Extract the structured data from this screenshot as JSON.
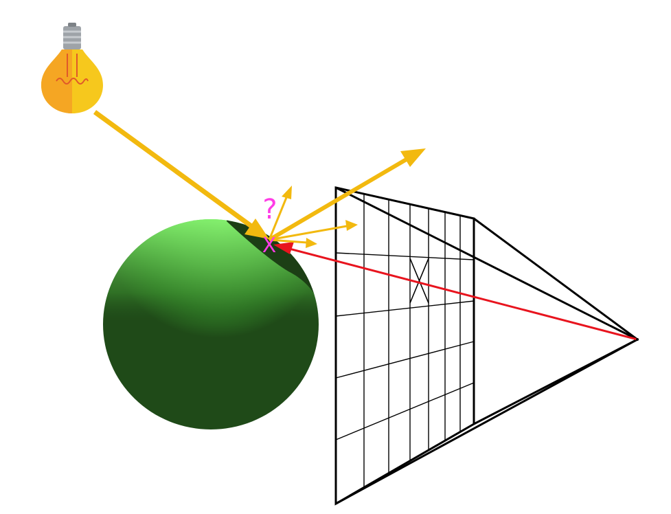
{
  "colors": {
    "background": "#ffffff",
    "ray_yellow": "#f2b90f",
    "ray_red": "#e8141e",
    "marker_magenta": "#ff3ce6",
    "sphere_highlight": "#84f06e",
    "sphere_mid": "#2f7a25",
    "sphere_dark": "#1f4a18",
    "bulb_glass_left": "#f5a623",
    "bulb_glass_right": "#f6c81d",
    "bulb_filament": "#e0582a",
    "bulb_cap": "#9ea3a8",
    "grid_line": "#000000"
  },
  "labels": {
    "intersection_marker": "X",
    "unknown_marker": "?"
  },
  "icons": {
    "light": "light-bulb-icon",
    "camera": "camera-eye-point"
  }
}
